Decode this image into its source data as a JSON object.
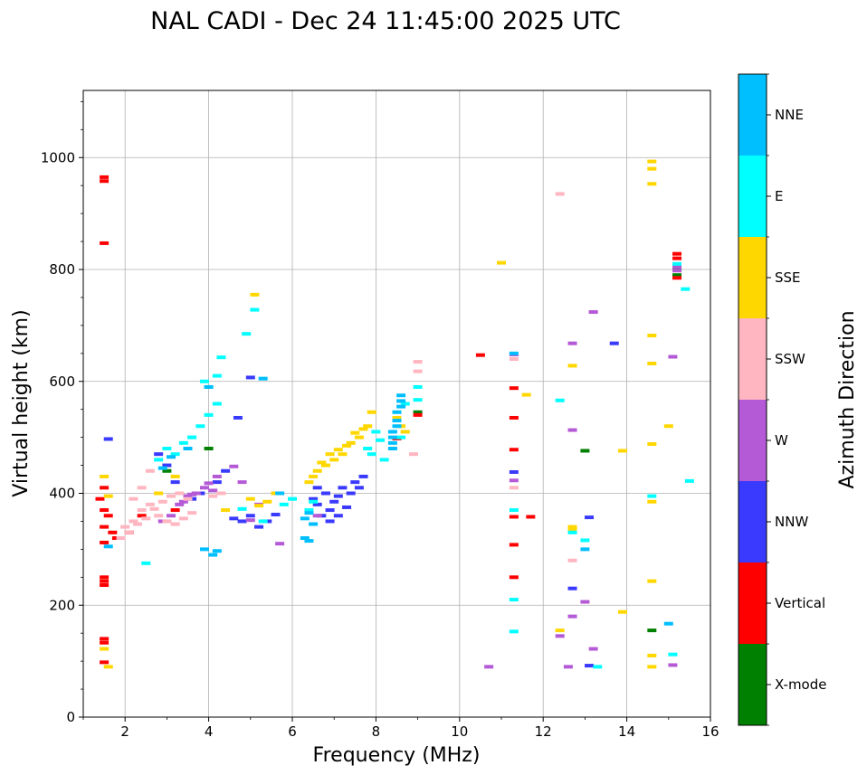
{
  "chart_data": {
    "type": "scatter",
    "title": "NAL CADI - Dec 24 11:45:00 2025 UTC",
    "xlabel": "Frequency (MHz)",
    "ylabel": "Virtual height (km)",
    "xlim": [
      1,
      16
    ],
    "ylim": [
      0,
      1120
    ],
    "xticks": [
      2,
      4,
      6,
      8,
      10,
      12,
      14,
      16
    ],
    "yticks": [
      0,
      200,
      400,
      600,
      800,
      1000
    ],
    "grid": true,
    "colorbar": {
      "title": "Azimuth Direction",
      "categories": [
        {
          "label": "X-mode",
          "color": "#008000"
        },
        {
          "label": "Vertical",
          "color": "#ff0000"
        },
        {
          "label": "NNW",
          "color": "#3a3aff"
        },
        {
          "label": "W",
          "color": "#b55ad6"
        },
        {
          "label": "SSW",
          "color": "#ffb6c1"
        },
        {
          "label": "SSE",
          "color": "#ffd700"
        },
        {
          "label": "E",
          "color": "#00ffff"
        },
        {
          "label": "NNE",
          "color": "#00bfff"
        }
      ]
    },
    "series": [
      {
        "name": "X-mode",
        "color": "#008000",
        "points": [
          [
            14.6,
            155
          ],
          [
            15.2,
            790
          ],
          [
            15.2,
            800
          ],
          [
            13.0,
            476
          ],
          [
            4.0,
            480
          ],
          [
            3.0,
            440
          ],
          [
            9.0,
            545
          ]
        ]
      },
      {
        "name": "Vertical",
        "color": "#ff0000",
        "points": [
          [
            1.5,
            965
          ],
          [
            1.5,
            958
          ],
          [
            1.5,
            847
          ],
          [
            1.5,
            250
          ],
          [
            1.5,
            243
          ],
          [
            1.5,
            236
          ],
          [
            1.5,
            140
          ],
          [
            1.5,
            133
          ],
          [
            1.5,
            98
          ],
          [
            1.5,
            410
          ],
          [
            1.4,
            390
          ],
          [
            1.5,
            370
          ],
          [
            1.6,
            360
          ],
          [
            1.5,
            340
          ],
          [
            1.7,
            330
          ],
          [
            1.8,
            320
          ],
          [
            1.5,
            312
          ],
          [
            11.3,
            588
          ],
          [
            11.3,
            535
          ],
          [
            11.3,
            478
          ],
          [
            11.3,
            358
          ],
          [
            11.3,
            308
          ],
          [
            11.3,
            250
          ],
          [
            10.5,
            647
          ],
          [
            11.7,
            358
          ],
          [
            15.2,
            828
          ],
          [
            15.2,
            820
          ],
          [
            15.2,
            785
          ],
          [
            8.5,
            498
          ],
          [
            9.0,
            540
          ],
          [
            3.2,
            370
          ],
          [
            2.1,
            330
          ],
          [
            2.4,
            360
          ]
        ]
      },
      {
        "name": "NNW",
        "color": "#3a3aff",
        "points": [
          [
            6.5,
            390
          ],
          [
            6.6,
            380
          ],
          [
            6.8,
            400
          ],
          [
            6.9,
            370
          ],
          [
            7.0,
            385
          ],
          [
            7.1,
            395
          ],
          [
            7.2,
            410
          ],
          [
            7.3,
            375
          ],
          [
            7.4,
            400
          ],
          [
            7.5,
            420
          ],
          [
            7.6,
            410
          ],
          [
            7.7,
            430
          ],
          [
            6.7,
            360
          ],
          [
            6.9,
            350
          ],
          [
            7.1,
            360
          ],
          [
            6.6,
            410
          ],
          [
            3.6,
            390
          ],
          [
            3.8,
            400
          ],
          [
            4.2,
            420
          ],
          [
            4.4,
            440
          ],
          [
            4.6,
            355
          ],
          [
            4.8,
            350
          ],
          [
            5.0,
            360
          ],
          [
            5.2,
            340
          ],
          [
            5.4,
            350
          ],
          [
            5.6,
            362
          ],
          [
            2.8,
            470
          ],
          [
            3.0,
            450
          ],
          [
            3.2,
            420
          ],
          [
            4.7,
            535
          ],
          [
            5.0,
            607
          ],
          [
            12.7,
            230
          ],
          [
            13.1,
            357
          ],
          [
            13.1,
            92
          ],
          [
            13.7,
            668
          ],
          [
            11.3,
            438
          ],
          [
            1.6,
            497
          ]
        ]
      },
      {
        "name": "W",
        "color": "#b55ad6",
        "points": [
          [
            3.3,
            380
          ],
          [
            3.5,
            395
          ],
          [
            3.7,
            400
          ],
          [
            3.9,
            410
          ],
          [
            4.1,
            405
          ],
          [
            3.4,
            385
          ],
          [
            3.6,
            398
          ],
          [
            4.0,
            418
          ],
          [
            2.9,
            350
          ],
          [
            3.1,
            360
          ],
          [
            4.2,
            430
          ],
          [
            4.6,
            448
          ],
          [
            4.8,
            420
          ],
          [
            5.0,
            352
          ],
          [
            5.2,
            380
          ],
          [
            5.7,
            310
          ],
          [
            6.6,
            360
          ],
          [
            12.7,
            668
          ],
          [
            12.7,
            513
          ],
          [
            12.7,
            180
          ],
          [
            13.0,
            206
          ],
          [
            13.2,
            122
          ],
          [
            13.2,
            724
          ],
          [
            12.4,
            145
          ],
          [
            10.7,
            90
          ],
          [
            12.6,
            90
          ],
          [
            15.1,
            644
          ],
          [
            15.1,
            93
          ],
          [
            15.2,
            805
          ],
          [
            15.2,
            798
          ],
          [
            11.3,
            423
          ],
          [
            11.3,
            648
          ]
        ]
      },
      {
        "name": "SSW",
        "color": "#ffb6c1",
        "points": [
          [
            2.0,
            340
          ],
          [
            2.2,
            350
          ],
          [
            2.4,
            370
          ],
          [
            2.6,
            380
          ],
          [
            2.8,
            360
          ],
          [
            3.0,
            350
          ],
          [
            3.2,
            345
          ],
          [
            3.4,
            355
          ],
          [
            3.6,
            365
          ],
          [
            2.1,
            330
          ],
          [
            2.3,
            345
          ],
          [
            2.5,
            355
          ],
          [
            2.7,
            372
          ],
          [
            2.9,
            385
          ],
          [
            3.1,
            395
          ],
          [
            3.3,
            400
          ],
          [
            3.5,
            390
          ],
          [
            4.1,
            395
          ],
          [
            4.3,
            400
          ],
          [
            2.6,
            440
          ],
          [
            2.4,
            410
          ],
          [
            2.2,
            390
          ],
          [
            1.9,
            320
          ],
          [
            12.4,
            935
          ],
          [
            12.7,
            280
          ],
          [
            11.3,
            410
          ],
          [
            9.0,
            635
          ],
          [
            9.0,
            618
          ],
          [
            8.9,
            470
          ],
          [
            11.3,
            640
          ]
        ]
      },
      {
        "name": "SSE",
        "color": "#ffd700",
        "points": [
          [
            6.5,
            430
          ],
          [
            6.6,
            440
          ],
          [
            6.8,
            450
          ],
          [
            7.0,
            460
          ],
          [
            7.2,
            470
          ],
          [
            7.4,
            490
          ],
          [
            7.6,
            500
          ],
          [
            7.8,
            520
          ],
          [
            7.9,
            545
          ],
          [
            6.7,
            455
          ],
          [
            6.9,
            470
          ],
          [
            7.1,
            478
          ],
          [
            7.3,
            485
          ],
          [
            7.5,
            508
          ],
          [
            7.7,
            515
          ],
          [
            6.4,
            420
          ],
          [
            8.5,
            535
          ],
          [
            8.6,
            520
          ],
          [
            8.7,
            510
          ],
          [
            5.0,
            390
          ],
          [
            5.2,
            378
          ],
          [
            5.4,
            385
          ],
          [
            5.6,
            400
          ],
          [
            5.1,
            755
          ],
          [
            1.5,
            430
          ],
          [
            1.6,
            395
          ],
          [
            1.5,
            122
          ],
          [
            1.6,
            90
          ],
          [
            12.7,
            628
          ],
          [
            12.7,
            340
          ],
          [
            12.7,
            335
          ],
          [
            12.4,
            155
          ],
          [
            14.6,
            993
          ],
          [
            14.6,
            980
          ],
          [
            14.6,
            953
          ],
          [
            14.6,
            682
          ],
          [
            14.6,
            632
          ],
          [
            14.6,
            488
          ],
          [
            14.6,
            385
          ],
          [
            14.6,
            243
          ],
          [
            14.6,
            110
          ],
          [
            14.6,
            90
          ],
          [
            15.0,
            520
          ],
          [
            13.9,
            476
          ],
          [
            13.9,
            188
          ],
          [
            11.0,
            812
          ],
          [
            11.6,
            576
          ],
          [
            3.2,
            430
          ],
          [
            2.8,
            400
          ],
          [
            4.4,
            370
          ]
        ]
      },
      {
        "name": "E",
        "color": "#00ffff",
        "points": [
          [
            2.8,
            460
          ],
          [
            3.0,
            480
          ],
          [
            3.2,
            470
          ],
          [
            3.4,
            490
          ],
          [
            3.6,
            500
          ],
          [
            3.8,
            520
          ],
          [
            4.0,
            540
          ],
          [
            4.2,
            560
          ],
          [
            4.0,
            590
          ],
          [
            4.2,
            610
          ],
          [
            4.3,
            643
          ],
          [
            3.9,
            600
          ],
          [
            7.8,
            480
          ],
          [
            7.9,
            470
          ],
          [
            8.0,
            510
          ],
          [
            8.1,
            495
          ],
          [
            8.2,
            460
          ],
          [
            8.6,
            500
          ],
          [
            8.7,
            560
          ],
          [
            9.0,
            590
          ],
          [
            9.0,
            567
          ],
          [
            6.4,
            370
          ],
          [
            6.5,
            385
          ],
          [
            5.8,
            380
          ],
          [
            6.0,
            390
          ],
          [
            5.3,
            350
          ],
          [
            4.8,
            372
          ],
          [
            5.1,
            728
          ],
          [
            4.9,
            685
          ],
          [
            2.5,
            275
          ],
          [
            12.4,
            566
          ],
          [
            12.7,
            330
          ],
          [
            13.0,
            316
          ],
          [
            13.3,
            90
          ],
          [
            15.4,
            765
          ],
          [
            15.5,
            422
          ],
          [
            14.6,
            395
          ],
          [
            15.1,
            112
          ],
          [
            11.3,
            370
          ],
          [
            11.3,
            210
          ],
          [
            11.3,
            153
          ],
          [
            15.2,
            810
          ]
        ]
      },
      {
        "name": "NNE",
        "color": "#00bfff",
        "points": [
          [
            8.4,
            490
          ],
          [
            8.4,
            500
          ],
          [
            8.4,
            510
          ],
          [
            8.5,
            520
          ],
          [
            8.5,
            530
          ],
          [
            8.5,
            545
          ],
          [
            8.6,
            555
          ],
          [
            8.6,
            565
          ],
          [
            8.6,
            575
          ],
          [
            8.4,
            480
          ],
          [
            6.3,
            320
          ],
          [
            6.4,
            315
          ],
          [
            6.3,
            355
          ],
          [
            6.4,
            365
          ],
          [
            4.1,
            290
          ],
          [
            4.2,
            297
          ],
          [
            3.9,
            300
          ],
          [
            5.3,
            605
          ],
          [
            3.5,
            480
          ],
          [
            2.9,
            445
          ],
          [
            3.1,
            465
          ],
          [
            4.0,
            590
          ],
          [
            11.3,
            650
          ],
          [
            13.0,
            300
          ],
          [
            15.0,
            167
          ],
          [
            1.6,
            305
          ],
          [
            6.5,
            345
          ],
          [
            5.7,
            400
          ]
        ]
      }
    ]
  }
}
